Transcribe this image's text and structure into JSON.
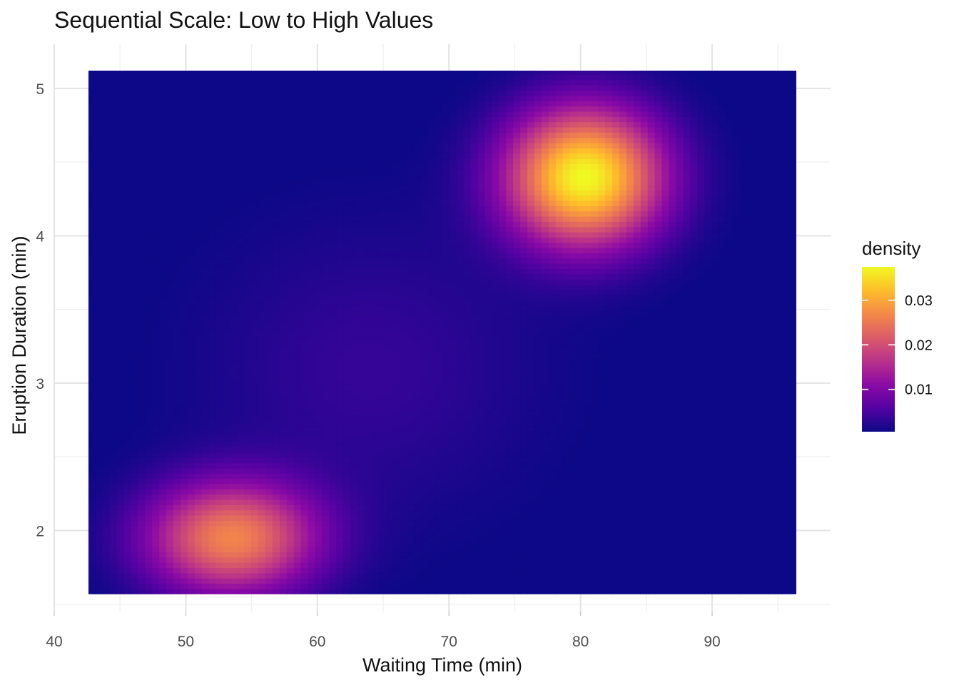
{
  "chart_data": {
    "type": "heatmap",
    "title": "Sequential Scale: Low to High Values",
    "xlabel": "Waiting Time (min)",
    "ylabel": "Eruption Duration (min)",
    "xlim": [
      40,
      99
    ],
    "ylim": [
      1.45,
      5.3
    ],
    "x_ticks": [
      40,
      50,
      60,
      70,
      80,
      90
    ],
    "y_ticks": [
      2,
      3,
      4,
      5
    ],
    "grid": true,
    "data_extent": {
      "x": [
        42.6,
        96.4
      ],
      "y": [
        1.57,
        5.13
      ]
    },
    "density_peaks": [
      {
        "x": 80.3,
        "y": 4.4,
        "density": 0.0375
      },
      {
        "x": 53.5,
        "y": 1.95,
        "density": 0.026
      }
    ],
    "colormap": "plasma",
    "colors": [
      "#0d0887",
      "#5402a3",
      "#8b0aa5",
      "#b93289",
      "#db5c68",
      "#f48849",
      "#febd2a",
      "#f0f921"
    ],
    "legend": {
      "title": "density",
      "position": "right",
      "range": [
        0.0005,
        0.0375
      ],
      "ticks": [
        0.01,
        0.02,
        0.03
      ],
      "tick_labels": [
        "0.01",
        "0.02",
        "0.03"
      ]
    }
  }
}
